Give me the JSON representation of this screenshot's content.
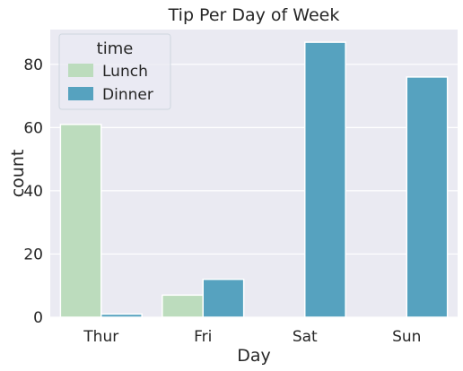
{
  "chart_data": {
    "type": "bar",
    "title": "Tip Per Day of Week",
    "xlabel": "Day",
    "ylabel": "count",
    "categories": [
      "Thur",
      "Fri",
      "Sat",
      "Sun"
    ],
    "series": [
      {
        "name": "Lunch",
        "values": [
          61,
          7,
          0,
          0
        ],
        "color": "#bcdcbd"
      },
      {
        "name": "Dinner",
        "values": [
          1,
          12,
          87,
          76
        ],
        "color": "#56a2bf"
      }
    ],
    "ylim": [
      0,
      91
    ],
    "yticks": [
      0,
      20,
      40,
      60,
      80
    ],
    "grid": true,
    "legend": {
      "title": "time",
      "position": "top-left"
    },
    "background_color": "#eaeaf2"
  }
}
